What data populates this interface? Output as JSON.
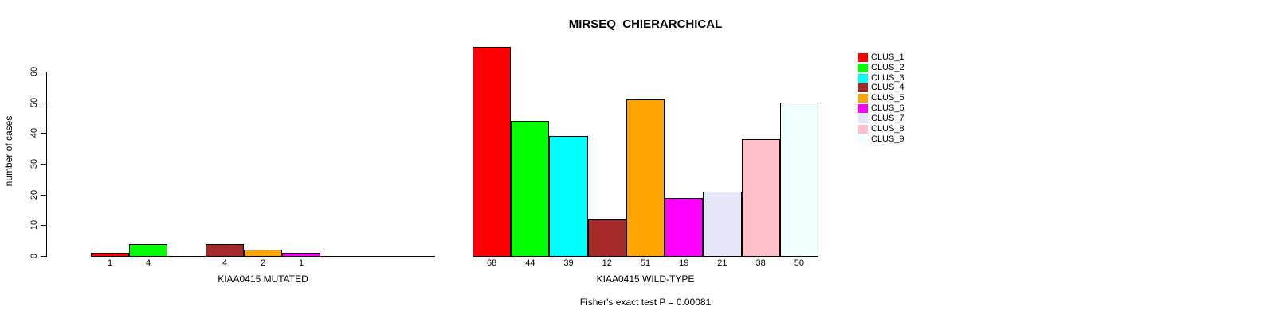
{
  "chart_data": {
    "type": "bar",
    "title": "MIRSEQ_CHIERARCHICAL",
    "ylabel": "number of cases",
    "annotation": "Fisher's exact test P = 0.00081",
    "ylim": [
      0,
      68
    ],
    "yticks": [
      0,
      10,
      20,
      30,
      40,
      50,
      60
    ],
    "grid": false,
    "legend_position": "top-right",
    "categories": [
      "CLUS_1",
      "CLUS_2",
      "CLUS_3",
      "CLUS_4",
      "CLUS_5",
      "CLUS_6",
      "CLUS_7",
      "CLUS_8",
      "CLUS_9"
    ],
    "legend": [
      {
        "label": "CLUS_1",
        "color": "#FF0000"
      },
      {
        "label": "CLUS_2",
        "color": "#00FF00"
      },
      {
        "label": "CLUS_3",
        "color": "#00FFFF"
      },
      {
        "label": "CLUS_4",
        "color": "#A52A2A"
      },
      {
        "label": "CLUS_5",
        "color": "#FFA500"
      },
      {
        "label": "CLUS_6",
        "color": "#FF00FF"
      },
      {
        "label": "CLUS_7",
        "color": "#E6E6FA"
      },
      {
        "label": "CLUS_8",
        "color": "#FFC0CB"
      },
      {
        "label": "CLUS_9",
        "color": "#F0FFFF"
      }
    ],
    "panels": [
      {
        "xlabel": "KIAA0415 MUTATED",
        "values": [
          1,
          4,
          0,
          4,
          2,
          1,
          0,
          0,
          0
        ],
        "bar_labels": [
          "1",
          "4",
          null,
          "4",
          "2",
          "1",
          null,
          null,
          null
        ]
      },
      {
        "xlabel": "KIAA0415 WILD-TYPE",
        "values": [
          68,
          44,
          39,
          12,
          51,
          19,
          21,
          38,
          50
        ],
        "bar_labels": [
          "68",
          "44",
          "39",
          "12",
          "51",
          "19",
          "21",
          "38",
          "50"
        ]
      }
    ]
  }
}
